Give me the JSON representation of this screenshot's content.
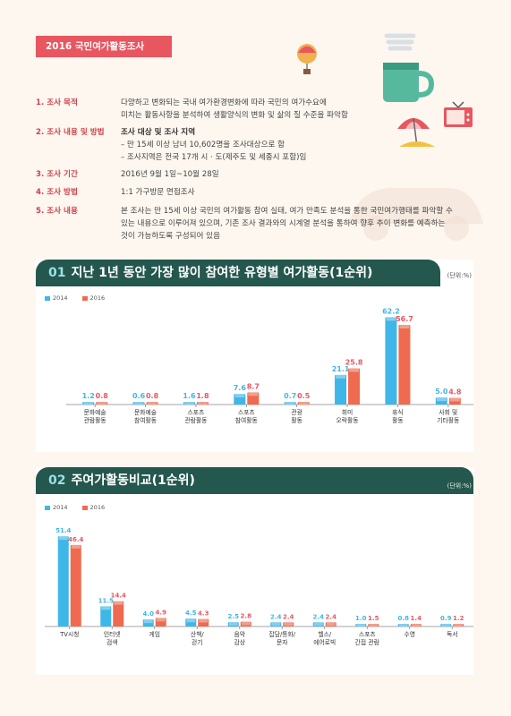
{
  "survey_title": "2016 국민여가활동조사",
  "info": [
    {
      "label": "1. 조사 목적",
      "lines": [
        "다양하고 변화되는 국내 여가환경변화에 따라 국민의 여가수요에",
        "미치는 활동사항을 분석하여 생활양식의 변화 및 삶의 질 수준을 파악함"
      ]
    },
    {
      "label": "2. 조사 내용 및 방법",
      "lines": [
        "조사 대상 및 조사 지역",
        "– 만 15세 이상 남녀 10,602명을 조사대상으로 함",
        "– 조사지역은 전국 17개 시 · 도(제주도 및 세종시 포함)임"
      ]
    },
    {
      "label": "3. 조사 기간",
      "lines": [
        "2016년 9월 1일~10월 28일"
      ]
    },
    {
      "label": "4. 조사 방법",
      "lines": [
        "1:1 가구방문 면접조사"
      ]
    },
    {
      "label": "5. 조사 내용",
      "lines": [
        "본 조사는 만 15세 이상 국민의 여가활동 참여 실태, 여가 만족도 분석을 통한 국민여가행태를 파악할 수",
        "있는 내용으로 이루어져 있으며, 기존 조사 결과와의 시계열 분석을 통하여 향후 추이 변화를 예측하는",
        "것이 가능하도록 구성되어 있음"
      ]
    }
  ],
  "colors": {
    "y2014": "#3fb6e8",
    "y2016": "#ef6a4f",
    "header": "#24574d",
    "accent": "#e8565f"
  },
  "chart_data": [
    {
      "type": "bar",
      "number": "01",
      "title": "지난 1년 동안 가장 많이 참여한 유형별 여가활동(1순위)",
      "unit": "(단위:%)",
      "categories": [
        "문화예술\n관람활동",
        "문화예술\n참여활동",
        "스포츠\n관람활동",
        "스포츠\n참여활동",
        "관광\n활동",
        "취미\n오락활동",
        "휴식\n활동",
        "사회 및\n기타활동"
      ],
      "series": [
        {
          "name": "2014",
          "values": [
            1.2,
            0.6,
            1.6,
            7.6,
            0.7,
            21.1,
            62.2,
            5.0
          ]
        },
        {
          "name": "2016",
          "values": [
            0.8,
            0.8,
            1.8,
            8.7,
            0.5,
            25.8,
            56.7,
            4.8
          ]
        }
      ],
      "grid": false
    },
    {
      "type": "bar",
      "number": "02",
      "title": "주여가활동비교(1순위)",
      "unit": "(단위:%)",
      "categories": [
        "TV시청",
        "인터넷\n검색",
        "게임",
        "산책/\n걷기",
        "음악\n감상",
        "잡담/통화/\n문자",
        "헬스/\n에어로빅",
        "스포츠\n간접 관람",
        "수영",
        "독서"
      ],
      "series": [
        {
          "name": "2014",
          "values": [
            51.4,
            11.5,
            4.0,
            4.5,
            2.5,
            2.4,
            2.4,
            1.0,
            0.8,
            0.9
          ]
        },
        {
          "name": "2016",
          "values": [
            46.4,
            14.4,
            4.9,
            4.3,
            2.8,
            2.4,
            2.4,
            1.5,
            1.4,
            1.2
          ]
        }
      ],
      "grid": false
    }
  ]
}
